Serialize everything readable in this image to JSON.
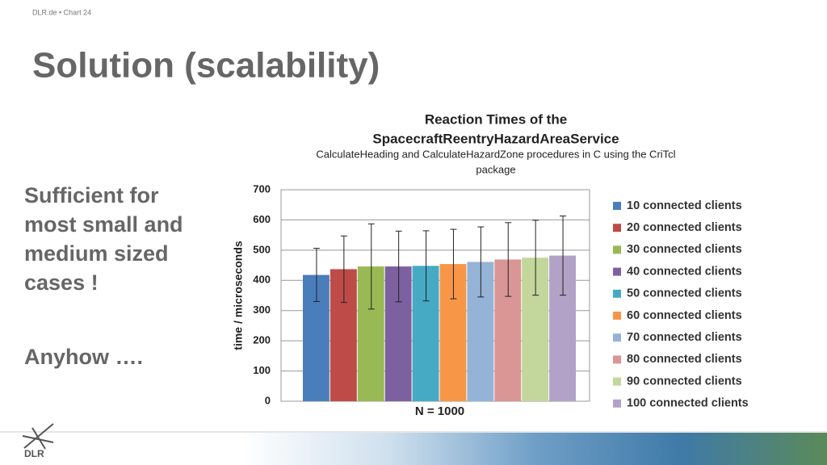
{
  "header": {
    "source": "DLR.de • Chart 24"
  },
  "slide_title": "Solution (scalability)",
  "bullets": [
    {
      "lines": [
        "Sufficient for",
        "most small and",
        "medium sized",
        "cases !"
      ]
    },
    {
      "lines": [
        "Anyhow …."
      ]
    }
  ],
  "logo": "DLR",
  "chart_data": {
    "type": "bar",
    "title": [
      "Reaction Times of the",
      "SpacecraftReentryHazardAreaService"
    ],
    "subtitle": [
      "CalculateHeading and CalculateHazardZone procedures in C using the CriTcl",
      "package"
    ],
    "y_label": "time / microseconds",
    "categories": [
      "N = 1000"
    ],
    "ylim": [
      0,
      700
    ],
    "yticks": [
      0,
      100,
      200,
      300,
      400,
      500,
      600,
      700
    ],
    "grid": true,
    "legend": "right",
    "series": [
      {
        "name": "10 connected clients",
        "color": "#4a7ebb",
        "values": [
          418
        ],
        "errors": [
          88
        ]
      },
      {
        "name": "20 connected clients",
        "color": "#be4b48",
        "values": [
          437
        ],
        "errors": [
          110
        ]
      },
      {
        "name": "30 connected clients",
        "color": "#98b954",
        "values": [
          446
        ],
        "errors": [
          141
        ]
      },
      {
        "name": "40 connected clients",
        "color": "#7d60a0",
        "values": [
          446
        ],
        "errors": [
          117
        ]
      },
      {
        "name": "50 connected clients",
        "color": "#46aac5",
        "values": [
          448
        ],
        "errors": [
          116
        ]
      },
      {
        "name": "60 connected clients",
        "color": "#f79646",
        "values": [
          454
        ],
        "errors": [
          115
        ]
      },
      {
        "name": "70 connected clients",
        "color": "#95b3d7",
        "values": [
          461
        ],
        "errors": [
          116
        ]
      },
      {
        "name": "80 connected clients",
        "color": "#d99694",
        "values": [
          469
        ],
        "errors": [
          122
        ]
      },
      {
        "name": "90 connected clients",
        "color": "#c3d69b",
        "values": [
          475
        ],
        "errors": [
          124
        ]
      },
      {
        "name": "100 connected clients",
        "color": "#b3a2c7",
        "values": [
          482
        ],
        "errors": [
          131
        ]
      }
    ]
  }
}
